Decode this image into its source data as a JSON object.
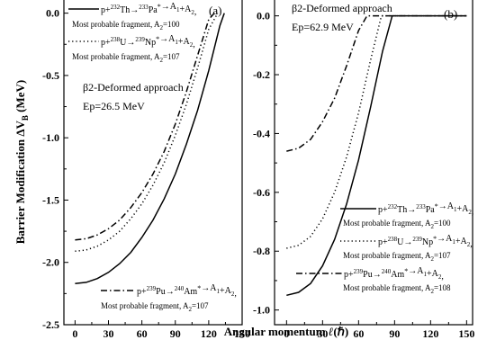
{
  "chart_data": [
    {
      "panel": "(a)",
      "type": "line",
      "xlim": [
        -10,
        150
      ],
      "ylim": [
        -2.5,
        0.12
      ],
      "x_ticks": [
        0,
        30,
        60,
        90,
        120,
        150
      ],
      "y_ticks": [
        0.0,
        -0.5,
        -1.0,
        -1.5,
        -2.0,
        -2.5
      ],
      "y_tick_labels": [
        "0.0",
        "-0.5",
        "-1.0",
        "-1.5",
        "-2.0",
        "-2.5"
      ],
      "annotation_1": "β2-Deformed approach",
      "annotation_2": "Ep=26.5 MeV",
      "series": [
        {
          "style": "solid",
          "reaction": "p+232Th→233Pa*→A1+A2,",
          "fragment": "Most probable fragment, A2=100",
          "x": [
            0,
            10,
            20,
            30,
            40,
            50,
            60,
            70,
            80,
            90,
            100,
            110,
            120,
            130,
            134
          ],
          "y": [
            -2.17,
            -2.16,
            -2.13,
            -2.08,
            -2.01,
            -1.92,
            -1.8,
            -1.66,
            -1.49,
            -1.29,
            -1.05,
            -0.78,
            -0.46,
            -0.1,
            0.0
          ]
        },
        {
          "style": "dotted",
          "reaction": "p+238U→239Np*→A1+A2,",
          "fragment": "Most probable fragment, A2=107",
          "x": [
            0,
            10,
            20,
            30,
            40,
            50,
            60,
            70,
            80,
            90,
            100,
            110,
            120,
            128
          ],
          "y": [
            -1.91,
            -1.9,
            -1.87,
            -1.82,
            -1.75,
            -1.65,
            -1.53,
            -1.38,
            -1.2,
            -0.98,
            -0.73,
            -0.44,
            -0.13,
            0.0
          ]
        },
        {
          "style": "dashdot",
          "reaction": "p+239Pu→240Am*→A1+A2,",
          "fragment": "Most probable fragment, A2=107",
          "x": [
            0,
            10,
            20,
            30,
            40,
            50,
            60,
            70,
            80,
            90,
            100,
            110,
            120,
            125
          ],
          "y": [
            -1.82,
            -1.81,
            -1.78,
            -1.73,
            -1.66,
            -1.56,
            -1.44,
            -1.29,
            -1.11,
            -0.89,
            -0.63,
            -0.34,
            -0.05,
            0.0
          ]
        }
      ]
    },
    {
      "panel": "(b)",
      "type": "line",
      "xlim": [
        -10,
        155
      ],
      "ylim": [
        -1.05,
        0.06
      ],
      "x_ticks": [
        0,
        30,
        60,
        90,
        120,
        150
      ],
      "y_ticks": [
        0.0,
        -0.2,
        -0.4,
        -0.6,
        -0.8,
        -1.0
      ],
      "y_tick_labels": [
        "0.0",
        "-0.2",
        "-0.4",
        "-0.6",
        "-0.8",
        "-1.0"
      ],
      "annotation_1": "β2-Deformed approach",
      "annotation_2": "Ep=62.9 MeV",
      "series": [
        {
          "style": "solid",
          "reaction": "p+232Th→233Pa*→A1+A2,",
          "fragment": "Most probable fragment, A2=100",
          "x": [
            0,
            10,
            20,
            30,
            40,
            50,
            60,
            70,
            80,
            88,
            150
          ],
          "y": [
            -0.95,
            -0.94,
            -0.91,
            -0.85,
            -0.76,
            -0.64,
            -0.49,
            -0.31,
            -0.12,
            0.0,
            0.0
          ]
        },
        {
          "style": "dotted",
          "reaction": "p+238U→239Np*→A1+A2,",
          "fragment": "Most probable fragment, A2=107",
          "x": [
            0,
            10,
            20,
            30,
            40,
            50,
            60,
            70,
            79,
            150
          ],
          "y": [
            -0.79,
            -0.78,
            -0.75,
            -0.69,
            -0.6,
            -0.48,
            -0.33,
            -0.15,
            0.0,
            0.0
          ]
        },
        {
          "style": "dashdot",
          "reaction": "p+239Pu→240Am*→A1+A2,",
          "fragment": "Most probable fragment, A2=108",
          "x": [
            0,
            10,
            20,
            30,
            40,
            50,
            60,
            67,
            150
          ],
          "y": [
            -0.46,
            -0.45,
            -0.42,
            -0.36,
            -0.28,
            -0.17,
            -0.05,
            0.0,
            0.0
          ]
        }
      ]
    }
  ],
  "ylabel_main": "Barrier Modification ΔV",
  "ylabel_sub": "B",
  "ylabel_unit": " (MeV)",
  "xlabel_main": "Angular momentum ",
  "xlabel_ell": "ℓ",
  "xlabel_unit": "(ℏ)",
  "colors": {
    "line": "#000000",
    "background": "#ffffff"
  }
}
